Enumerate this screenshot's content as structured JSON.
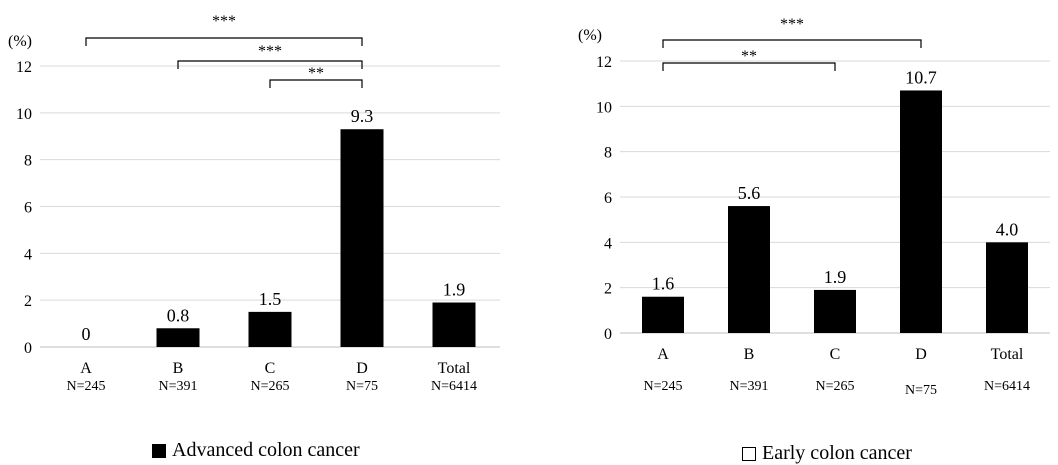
{
  "chart_data": [
    {
      "type": "bar",
      "unit_label": "(%)",
      "categories": [
        "A",
        "B",
        "C",
        "D",
        "Total"
      ],
      "n_labels": [
        "N=245",
        "N=391",
        "N=265",
        "N=75",
        "N=6414"
      ],
      "values": [
        0,
        0.8,
        1.5,
        9.3,
        1.9
      ],
      "value_labels": [
        "0",
        "0.8",
        "1.5",
        "9.3",
        "1.9"
      ],
      "ylim": [
        0,
        12
      ],
      "yticks": [
        "0",
        "2",
        "4",
        "6",
        "8",
        "10",
        "12"
      ],
      "grid": true,
      "bar_color": "#000000",
      "legend": {
        "label": "Advanced colon cancer",
        "swatch": "filled"
      },
      "significance": [
        {
          "from": "A",
          "to": "D",
          "label": "***"
        },
        {
          "from": "B",
          "to": "D",
          "label": "***"
        },
        {
          "from": "C",
          "to": "D",
          "label": "**"
        }
      ]
    },
    {
      "type": "bar",
      "unit_label": "(%)",
      "categories": [
        "A",
        "B",
        "C",
        "D",
        "Total"
      ],
      "n_labels": [
        "N=245",
        "N=391",
        "N=265",
        "N=75",
        "N=6414"
      ],
      "values": [
        1.6,
        5.6,
        1.9,
        10.7,
        4.0
      ],
      "value_labels": [
        "1.6",
        "5.6",
        "1.9",
        "10.7",
        "4.0"
      ],
      "ylim": [
        0,
        12
      ],
      "yticks": [
        "0",
        "2",
        "4",
        "6",
        "8",
        "10",
        "12"
      ],
      "grid": true,
      "bar_color": "#000000",
      "legend": {
        "label": "Early colon cancer",
        "swatch": "empty"
      },
      "significance": [
        {
          "from": "A",
          "to": "D",
          "label": "***"
        },
        {
          "from": "A",
          "to": "C",
          "label": "**"
        }
      ]
    }
  ]
}
